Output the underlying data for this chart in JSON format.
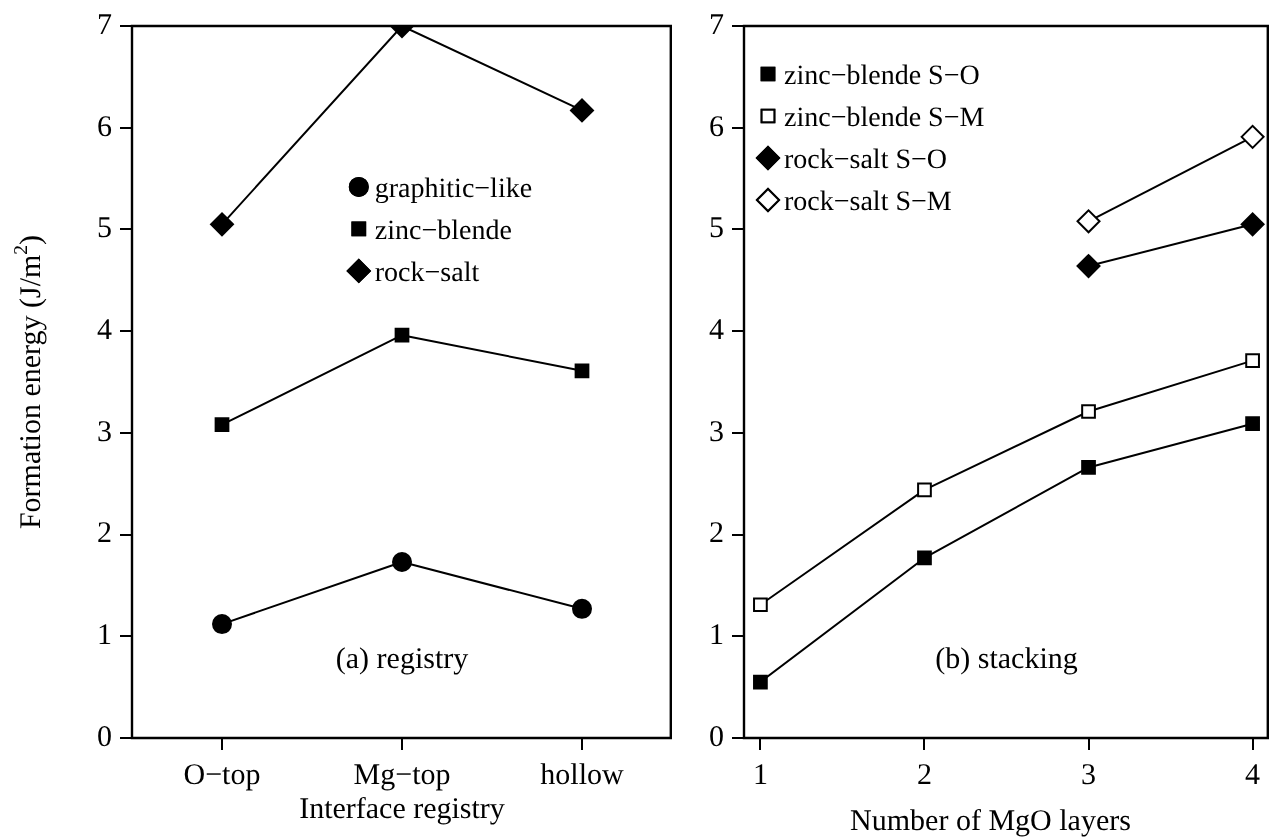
{
  "chart_data": [
    {
      "type": "line",
      "categories": [
        "O−top",
        "Mg−top",
        "hollow"
      ],
      "xlabel": "Interface registry",
      "ylabel": "Formation energy (J/m$^{2}$)",
      "ylim": [
        0,
        7
      ],
      "yticks": [
        0,
        1,
        2,
        3,
        4,
        5,
        6,
        7
      ],
      "grid": false,
      "legend": "top right",
      "line_style": "solid",
      "annotations": [
        "(a) registry"
      ],
      "series": [
        {
          "name": "graphitic−like",
          "color": "#000000",
          "marker": "circle",
          "values": [
            1.12,
            1.73,
            1.27
          ]
        },
        {
          "name": "zinc−blende",
          "color": "#000000",
          "marker": "square",
          "values": [
            3.08,
            3.96,
            3.61
          ]
        },
        {
          "name": "rock−salt",
          "color": "#000000",
          "marker": "diamond",
          "values": [
            5.05,
            7.0,
            6.17
          ]
        }
      ]
    },
    {
      "type": "line",
      "x": [
        1,
        2,
        3,
        4
      ],
      "xlabel": "Number of MgO layers",
      "xlim": [
        0.9,
        4.1
      ],
      "xticks": [
        1,
        2,
        3,
        4
      ],
      "ylim": [
        0,
        7
      ],
      "yticks": [
        0,
        1,
        2,
        3,
        4,
        5,
        6,
        7
      ],
      "grid": false,
      "legend": "top left",
      "line_style": "solid",
      "annotations": [
        "(b) stacking"
      ],
      "series": [
        {
          "name": "zinc−blende S−O",
          "color": "#000000",
          "marker": "square",
          "values": [
            0.55,
            1.77,
            2.66,
            3.09
          ]
        },
        {
          "name": "zinc−blende S−M",
          "color": "#000000",
          "marker": "square-open",
          "values": [
            1.31,
            2.44,
            3.21,
            3.71
          ]
        },
        {
          "name": "rock−salt S−O",
          "color": "#000000",
          "marker": "diamond",
          "values": [
            null,
            null,
            4.64,
            5.05
          ]
        },
        {
          "name": "rock−salt S−M",
          "color": "#000000",
          "marker": "diamond-open",
          "values": [
            null,
            null,
            5.08,
            5.91
          ]
        }
      ]
    }
  ]
}
